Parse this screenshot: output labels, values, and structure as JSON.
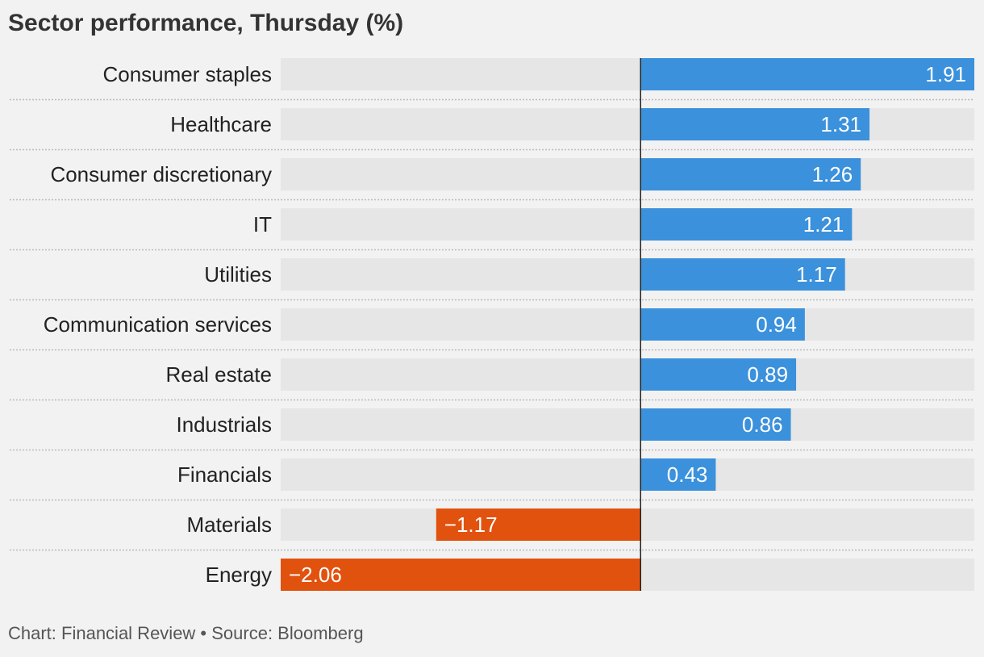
{
  "chart_data": {
    "type": "bar",
    "orientation": "horizontal",
    "title": "Sector performance, Thursday (%)",
    "categories": [
      "Consumer staples",
      "Healthcare",
      "Consumer discretionary",
      "IT",
      "Utilities",
      "Communication services",
      "Real estate",
      "Industrials",
      "Financials",
      "Materials",
      "Energy"
    ],
    "values": [
      1.91,
      1.31,
      1.26,
      1.21,
      1.17,
      0.94,
      0.89,
      0.86,
      0.43,
      -1.17,
      -2.06
    ],
    "value_labels": [
      "1.91",
      "1.31",
      "1.26",
      "1.21",
      "1.17",
      "0.94",
      "0.89",
      "0.86",
      "0.43",
      "−1.17",
      "−2.06"
    ],
    "xlim": [
      -2.06,
      1.91
    ],
    "grid": false,
    "colors": {
      "positive": "#3b91dc",
      "negative": "#e2520f",
      "track": "#e6e6e6",
      "zero_line": "#222222",
      "separator": "#bbbbbb"
    }
  },
  "footer": "Chart: Financial Review • Source: Bloomberg"
}
